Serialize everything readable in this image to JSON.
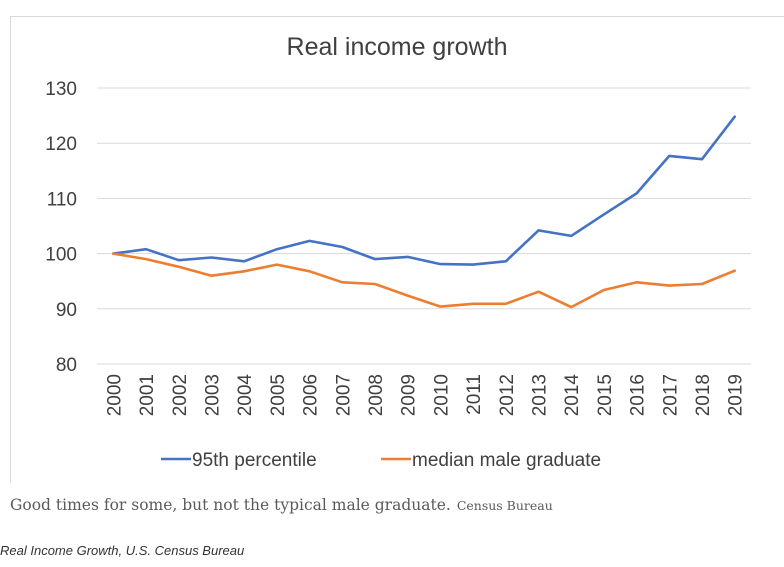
{
  "chart_data": {
    "type": "line",
    "title": "Real income growth",
    "categories": [
      "2000",
      "2001",
      "2002",
      "2003",
      "2004",
      "2005",
      "2006",
      "2007",
      "2008",
      "2009",
      "2010",
      "2011",
      "2012",
      "2013",
      "2014",
      "2015",
      "2016",
      "2017",
      "2018",
      "2019"
    ],
    "series": [
      {
        "name": "95th percentile",
        "color": "#4472c4",
        "values": [
          100,
          100.8,
          98.8,
          99.3,
          98.6,
          100.8,
          102.3,
          101.2,
          99.0,
          99.4,
          98.1,
          98.0,
          98.6,
          104.2,
          103.2,
          107.1,
          110.9,
          117.7,
          117.1,
          124.8
        ]
      },
      {
        "name": "median male graduate",
        "color": "#ed7d31",
        "values": [
          100,
          99.0,
          97.6,
          96.0,
          96.8,
          98.0,
          96.8,
          94.8,
          94.5,
          92.4,
          90.4,
          90.9,
          90.9,
          93.1,
          90.3,
          93.4,
          94.8,
          94.2,
          94.5,
          96.9
        ]
      }
    ],
    "ylim": [
      80,
      130
    ],
    "yticks": [
      80,
      90,
      100,
      110,
      120,
      130
    ],
    "grid": true,
    "legend": "bottom"
  },
  "caption": {
    "text": "Good times for some, but not the typical male graduate.",
    "credit": "Census Bureau"
  },
  "footnote": "Real Income Growth, U.S. Census Bureau"
}
